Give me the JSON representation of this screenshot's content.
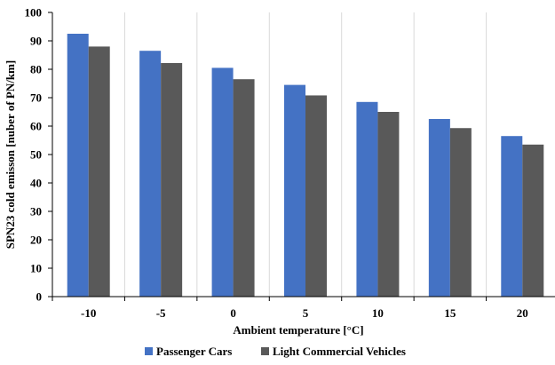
{
  "chart_data": {
    "type": "bar",
    "categories": [
      "-10",
      "-5",
      "0",
      "5",
      "10",
      "15",
      "20"
    ],
    "series": [
      {
        "name": "Passenger Cars",
        "color": "#4472C4",
        "values": [
          92.5,
          86.5,
          80.5,
          74.5,
          68.5,
          62.5,
          56.5
        ]
      },
      {
        "name": "Light Commercial Vehicles",
        "color": "#595959",
        "values": [
          88.0,
          82.2,
          76.5,
          70.8,
          65.0,
          59.3,
          53.5
        ]
      }
    ],
    "xlabel": "Ambient temperature [°C]",
    "ylabel": "SPN23 cold emisson [nuber of PN/km]",
    "ylim": [
      0,
      100
    ],
    "yticks": [
      0,
      10,
      20,
      30,
      40,
      50,
      60,
      70,
      80,
      90,
      100
    ],
    "grid": {
      "vertical": true,
      "horizontal": false,
      "color": "#d9d9d9"
    },
    "legend_position": "bottom"
  }
}
